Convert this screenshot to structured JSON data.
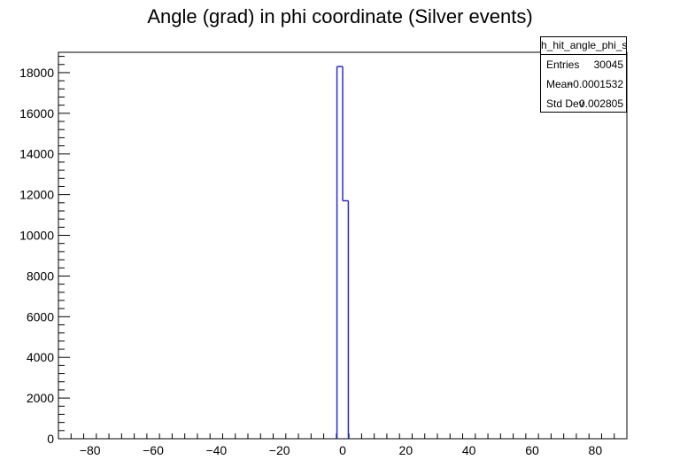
{
  "chart_data": {
    "type": "bar",
    "title": "Angle (grad) in phi coordinate (Silver events)",
    "xlabel": "",
    "ylabel": "",
    "xlim": [
      -90,
      90
    ],
    "ylim": [
      0,
      19000
    ],
    "xticks": [
      -80,
      -60,
      -40,
      -20,
      0,
      20,
      40,
      60,
      80
    ],
    "xtick_labels": [
      "−80",
      "−60",
      "−40",
      "−20",
      "0",
      "20",
      "40",
      "60",
      "80"
    ],
    "yticks": [
      0,
      2000,
      4000,
      6000,
      8000,
      10000,
      12000,
      14000,
      16000,
      18000
    ],
    "ytick_labels": [
      "0",
      "2000",
      "4000",
      "6000",
      "8000",
      "10000",
      "12000",
      "14000",
      "16000",
      "18000"
    ],
    "bins": [
      {
        "x0": -1.8,
        "x1": 0,
        "value": 18300
      },
      {
        "x0": 0,
        "x1": 1.8,
        "value": 11700
      }
    ],
    "line_color": "#2a2ad6",
    "grid": false,
    "legend": "none"
  },
  "stats": {
    "name": "h_hit_angle_phi_silver",
    "rows": [
      {
        "label": "Entries",
        "value": "30045"
      },
      {
        "label": "Mean",
        "value": "−0.0001532"
      },
      {
        "label": "Std Dev",
        "value": "0.002805"
      }
    ]
  }
}
